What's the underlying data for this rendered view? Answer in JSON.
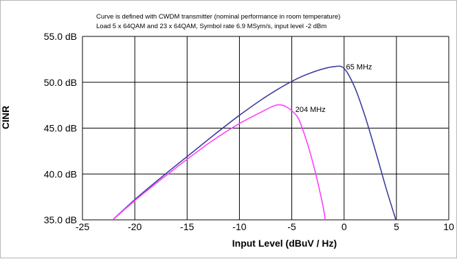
{
  "chart_data": {
    "type": "line",
    "annotation_lines": [
      "Curve is defined with CWDM transmitter (nominal performance in room temperature)",
      "Load 5 x 64QAM and 23 x 64QAM,  Symbol rate 6.9 MSym/s,  input level -2 dBm"
    ],
    "xlabel": "Input Level (dBuV / Hz)",
    "ylabel": "CINR",
    "xlim": [
      -25,
      10
    ],
    "ylim": [
      35,
      55
    ],
    "x_ticks": [
      "-25",
      "-20",
      "-15",
      "-10",
      "-5",
      "0",
      "5",
      "10"
    ],
    "y_ticks": [
      "35.0 dB",
      "40.0 dB",
      "45.0 dB",
      "50.0 dB",
      "55.0 dB"
    ],
    "grid": "horizontal and vertical",
    "series": [
      {
        "name": "65 MHz",
        "color": "#3b3b9c",
        "x": [
          -22.3,
          -20,
          -17.5,
          -15,
          -12.5,
          -10,
          -7.5,
          -5,
          -3,
          -1,
          0,
          1,
          2,
          3,
          4,
          5
        ],
        "y": [
          34.8,
          37.2,
          39.6,
          41.9,
          44.2,
          46.4,
          48.4,
          50.1,
          51.1,
          51.7,
          51.5,
          49.5,
          46.3,
          42.5,
          38.5,
          34.8
        ]
      },
      {
        "name": "204 MHz",
        "color": "#ff3cff",
        "x": [
          -22.3,
          -20,
          -17.5,
          -15,
          -12.5,
          -10,
          -8,
          -6.5,
          -5.5,
          -4.5,
          -4,
          -3.5,
          -3,
          -2.5,
          -2,
          -1.8
        ],
        "y": [
          34.8,
          37.1,
          39.4,
          41.6,
          43.7,
          45.5,
          46.7,
          47.5,
          47.3,
          46.3,
          45.0,
          43.3,
          41.3,
          39.0,
          36.4,
          35.0
        ]
      }
    ]
  }
}
